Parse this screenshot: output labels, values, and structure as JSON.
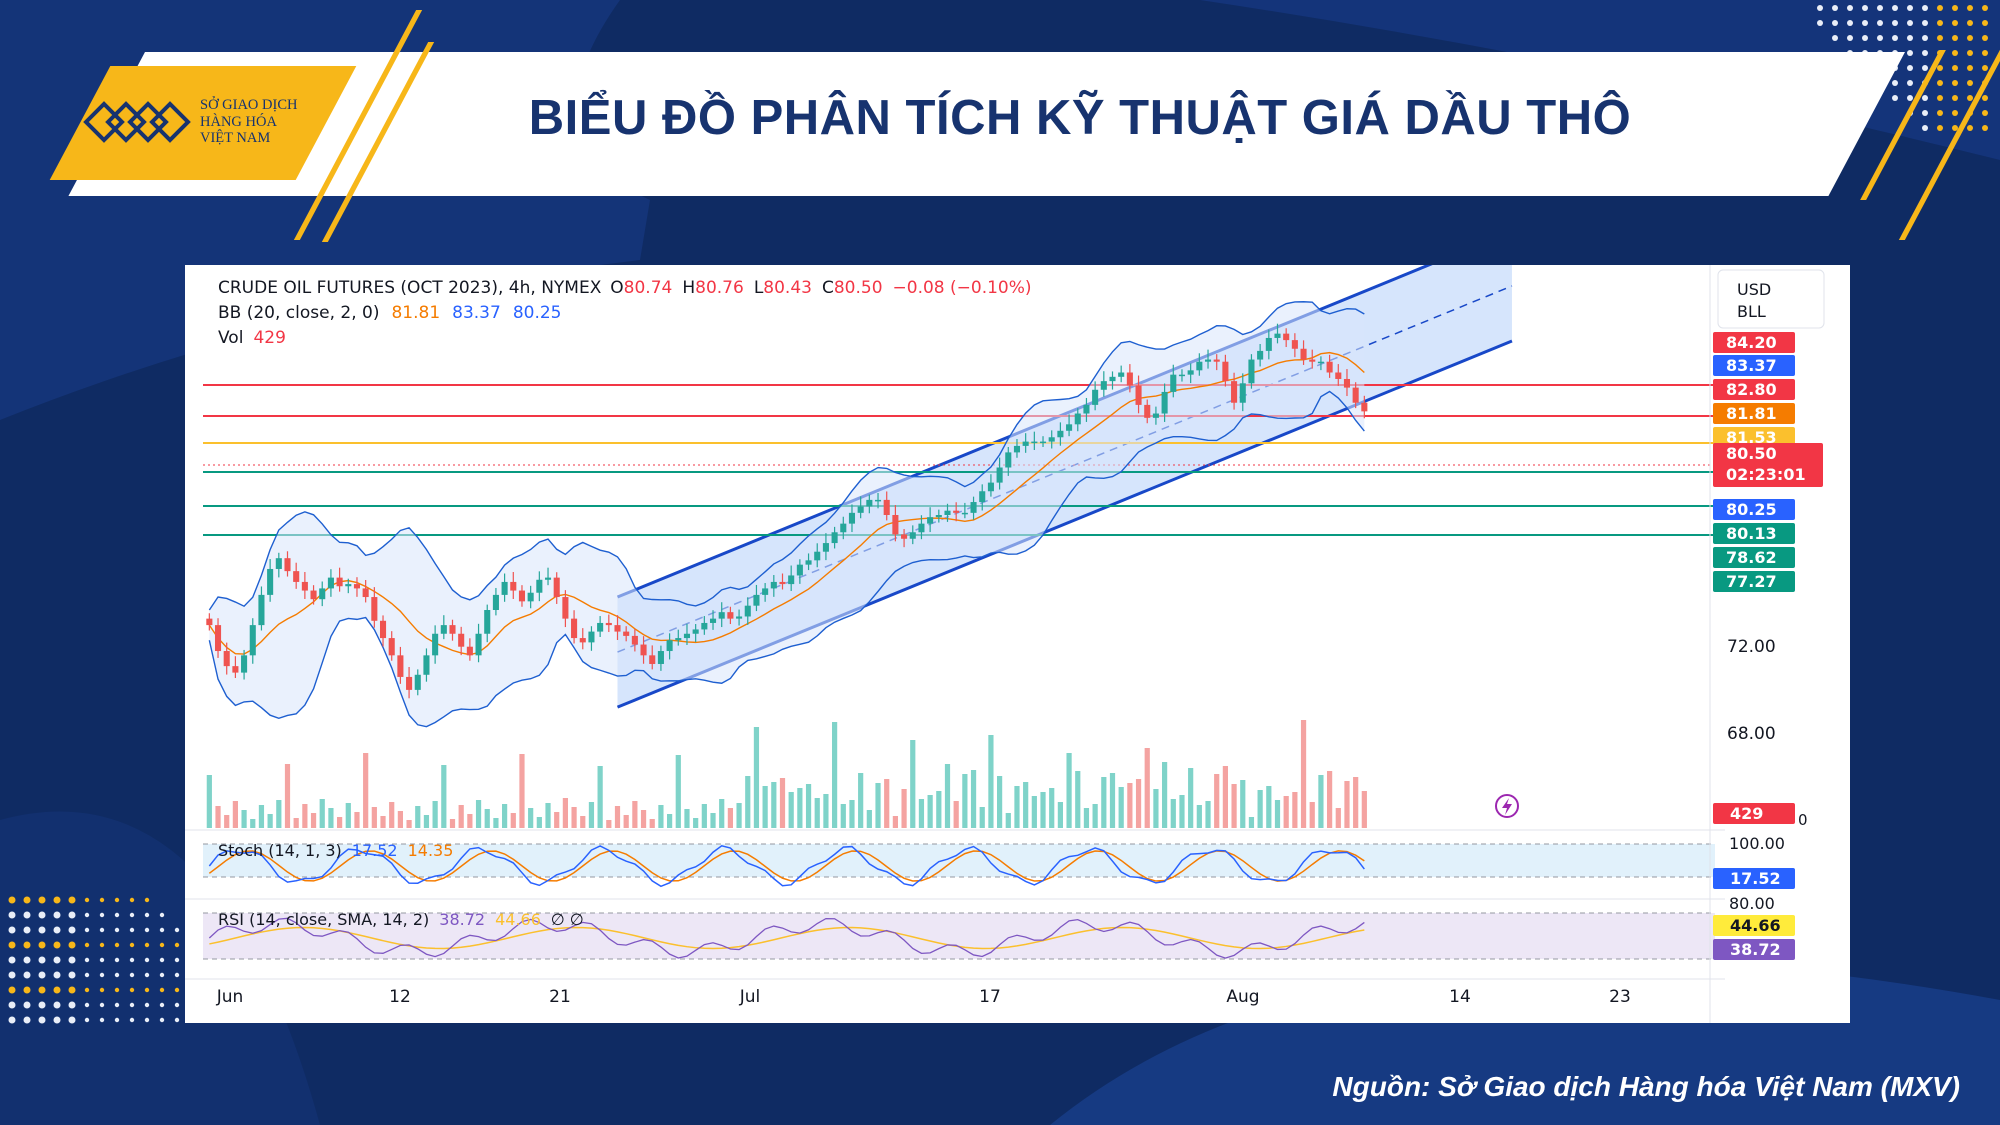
{
  "header": {
    "logo_text": "SỞ GIAO DỊCH\nHÀNG HÓA\nVIỆT NAM",
    "title": "BIỂU ĐỒ PHÂN TÍCH KỸ THUẬT GIÁ DẦU THÔ"
  },
  "source": "Nguồn: Sở Giao dịch Hàng hóa Việt Nam (MXV)",
  "colors": {
    "navy": "#0f2b63",
    "accent_yellow": "#f7b719",
    "up": "#26a69a",
    "down": "#ef5350",
    "channel": "#1848c8",
    "bb_basis": "#f57c00",
    "bb_band": "#1e5fd0"
  },
  "chart_data": {
    "type": "candlestick",
    "symbol": "CRUDE OIL FUTURES (OCT 2023), 4h, NYMEX",
    "ohlc": {
      "O": "80.74",
      "H": "80.76",
      "L": "80.43",
      "C": "80.50",
      "change": "−0.08 (−0.10%)"
    },
    "bb": {
      "label": "BB (20, close, 2, 0)",
      "basis": "81.81",
      "upper": "83.37",
      "lower": "80.25"
    },
    "vol": {
      "label": "Vol",
      "value": "429"
    },
    "currency": "USD",
    "unit": "BLL",
    "x_ticks": [
      "Jun",
      "12",
      "21",
      "Jul",
      "17",
      "Aug",
      "14",
      "23"
    ],
    "y_ticks": [
      "72.00",
      "68.00"
    ],
    "price_tags": [
      {
        "label": "84.20",
        "color": "#f23645"
      },
      {
        "label": "83.37",
        "color": "#2962ff"
      },
      {
        "label": "82.80",
        "color": "#f23645"
      },
      {
        "label": "81.81",
        "color": "#f57c00"
      },
      {
        "label": "81.53",
        "color": "#fbc02d"
      },
      {
        "label": "80.50",
        "sub": "02:23:01",
        "color": "#f23645"
      },
      {
        "label": "80.25",
        "color": "#2962ff"
      },
      {
        "label": "80.13",
        "color": "#089981"
      },
      {
        "label": "78.62",
        "color": "#089981"
      },
      {
        "label": "77.27",
        "color": "#089981"
      }
    ],
    "price_guide_lines": [
      {
        "note": "red resistance",
        "color": "#f23645"
      },
      {
        "note": "red resistance",
        "color": "#f23645"
      },
      {
        "note": "yellow",
        "color": "#fbc02d"
      },
      {
        "note": "green support",
        "color": "#089981"
      },
      {
        "note": "green support",
        "color": "#089981"
      },
      {
        "note": "green support",
        "color": "#089981"
      }
    ],
    "volume_tag": "429",
    "volume_zero": "0",
    "close_series": [
      70.6,
      69.4,
      68.7,
      68.4,
      69.2,
      70.6,
      72.0,
      73.2,
      73.7,
      73.1,
      72.6,
      72.2,
      71.8,
      72.3,
      72.8,
      72.4,
      72.5,
      72.3,
      71.9,
      70.8,
      70.0,
      69.2,
      68.2,
      67.6,
      68.3,
      69.2,
      70.2,
      70.6,
      70.2,
      69.6,
      69.2,
      70.2,
      71.3,
      72.0,
      72.6,
      72.2,
      71.7,
      72.1,
      72.7,
      72.8,
      71.9,
      70.9,
      70.0,
      69.8,
      70.3,
      70.7,
      70.6,
      70.3,
      70.1,
      69.7,
      69.2,
      68.8,
      69.4,
      69.9,
      70.0,
      70.2,
      70.4,
      70.7,
      70.9,
      71.2,
      70.9,
      71.0,
      71.5,
      72.0,
      72.3,
      72.6,
      72.5,
      72.9,
      73.4,
      73.6,
      74.0,
      74.4,
      74.9,
      75.3,
      75.8,
      76.1,
      76.4,
      76.4,
      75.7,
      74.8,
      74.6,
      74.9,
      75.3,
      75.6,
      75.7,
      75.9,
      75.8,
      75.8,
      76.3,
      76.8,
      77.2,
      77.9,
      78.6,
      78.9,
      79.1,
      79.1,
      79.1,
      79.3,
      79.6,
      79.9,
      80.4,
      80.8,
      81.5,
      81.9,
      82.1,
      82.3,
      81.7,
      80.8,
      80.2,
      80.4,
      81.4,
      82.2,
      82.2,
      82.4,
      82.8,
      82.9,
      82.8,
      81.9,
      80.9,
      81.8,
      82.9,
      83.3,
      83.9,
      84.1,
      83.8,
      83.4,
      82.9,
      82.8,
      82.8,
      82.3,
      82.0,
      81.6,
      80.9,
      80.5
    ],
    "stoch": {
      "label": "Stoch (14, 1, 3)",
      "k": "17.52",
      "d": "14.35",
      "upper": "100.00",
      "lower": "80.00"
    },
    "rsi": {
      "label": "RSI (14, close, SMA, 14, 2)",
      "value": "38.72",
      "ma": "44.66",
      "extra": "∅ ∅"
    }
  }
}
